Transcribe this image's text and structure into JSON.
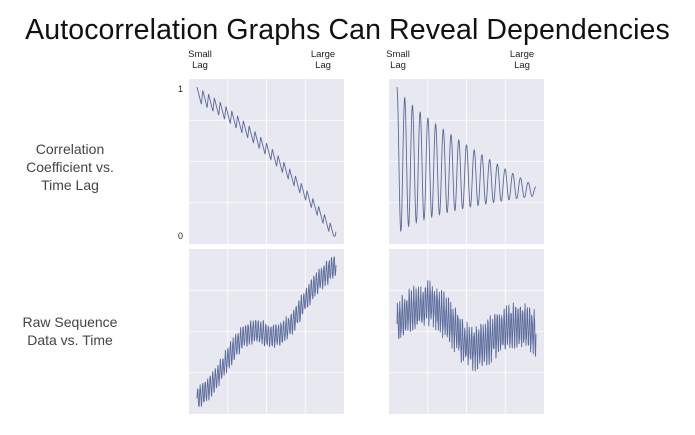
{
  "title": "Autocorrelation Graphs Can Reveal Dependencies",
  "lag_labels": {
    "small": [
      "Small",
      "Lag"
    ],
    "large": [
      "Large",
      "Lag"
    ]
  },
  "row_labels": {
    "acf": [
      "Correlation",
      "Coefficient vs.",
      "Time Lag"
    ],
    "raw": [
      "Raw Sequence",
      "Data vs. Time"
    ]
  },
  "colors": {
    "panel_bg": "#e8e8f1",
    "line": "#5a6a9a"
  },
  "chart_data": [
    {
      "type": "line",
      "panel": "acf-left",
      "series": [
        {
          "points": {
            "generator": "sawtooth-decay",
            "start": 1.0,
            "end": 0.03,
            "cycles": 24,
            "amplitude": 0.1
          }
        }
      ],
      "yticks": [
        "1",
        "0"
      ],
      "ylim": [
        0,
        1
      ],
      "grid": true
    },
    {
      "type": "line",
      "panel": "acf-right",
      "series": [
        {
          "points": {
            "generator": "oscillating-decay",
            "cycles": 18,
            "center_start": 0.5,
            "center_end": 0.3,
            "amp_start": 0.5,
            "amp_end": 0.03
          }
        }
      ],
      "ylim": [
        0,
        1
      ],
      "grid": true
    },
    {
      "type": "line",
      "panel": "raw-left",
      "series": [
        {
          "points": {
            "generator": "noisy-trend",
            "from": 0.05,
            "to": 0.95,
            "oscillation": 0.07
          }
        }
      ],
      "grid": true
    },
    {
      "type": "line",
      "panel": "raw-right",
      "series": [
        {
          "points": {
            "generator": "noisy-stationary",
            "center": 0.5,
            "oscillation": 0.12
          }
        }
      ],
      "grid": true
    }
  ]
}
